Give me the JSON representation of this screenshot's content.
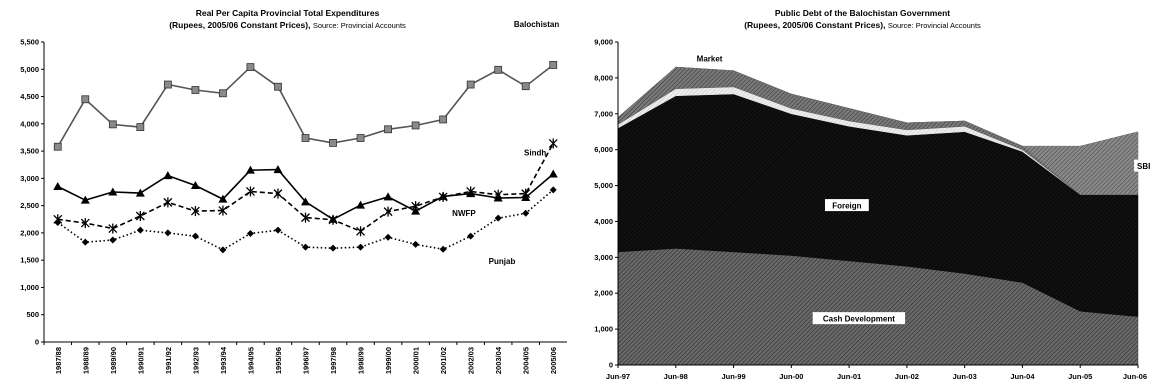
{
  "chart_data": [
    {
      "type": "line",
      "title": "Real Per Capita Provincial Total Expenditures",
      "subtitle": "(Rupees, 2005/06 Constant Prices),",
      "source": "Source: Provincial Accounts",
      "ylim": [
        0,
        5500
      ],
      "ytick_labels": [
        "0",
        "500",
        "1,000",
        "1,500",
        "2,000",
        "2,500",
        "3,000",
        "3,500",
        "4,000",
        "4,500",
        "5,000",
        "5,500"
      ],
      "categories": [
        "1987/88",
        "1988/89",
        "1989/90",
        "1990/91",
        "1991/92",
        "1992/93",
        "1993/94",
        "1994/95",
        "1995/96",
        "1996/97",
        "1997/98",
        "1998/99",
        "1999/00",
        "2000/01",
        "2001/02",
        "2002/03",
        "2003/04",
        "2004/05",
        "2005/06"
      ],
      "grid": false,
      "series": [
        {
          "name": "Balochistan",
          "color": "#555555",
          "line": "solid",
          "marker": "square",
          "values": [
            3580,
            4450,
            3990,
            3940,
            4720,
            4620,
            4560,
            5040,
            4680,
            3740,
            3650,
            3740,
            3900,
            3970,
            4080,
            4720,
            4990,
            4690,
            5080
          ]
        },
        {
          "name": "NWFP",
          "color": "#000000",
          "line": "solid",
          "marker": "triangle",
          "values": [
            2850,
            2600,
            2750,
            2730,
            3050,
            2870,
            2620,
            3150,
            3160,
            2570,
            2250,
            2510,
            2660,
            2400,
            2670,
            2720,
            2640,
            2650,
            3080
          ]
        },
        {
          "name": "Sindh",
          "color": "#000000",
          "line": "dashed",
          "marker": "star",
          "values": [
            2250,
            2180,
            2080,
            2310,
            2560,
            2400,
            2410,
            2760,
            2720,
            2280,
            2240,
            2030,
            2390,
            2490,
            2660,
            2760,
            2700,
            2720,
            3640
          ]
        },
        {
          "name": "Punjab",
          "color": "#000000",
          "line": "dotted",
          "marker": "diamond",
          "values": [
            2190,
            1830,
            1870,
            2050,
            2000,
            1940,
            1690,
            1990,
            2050,
            1740,
            1720,
            1740,
            1920,
            1790,
            1700,
            1940,
            2270,
            2360,
            2790
          ]
        }
      ]
    },
    {
      "type": "area",
      "title": "Public Debt of the Balochistan Government",
      "subtitle": "(Rupees, 2005/06 Constant Prices),",
      "source": "Source: Provincial Accounts",
      "ylim": [
        0,
        9000
      ],
      "ytick_labels": [
        "0",
        "1,000",
        "2,000",
        "3,000",
        "4,000",
        "5,000",
        "6,000",
        "7,000",
        "8,000",
        "9,000"
      ],
      "x": [
        "Jun-97",
        "Jun-98",
        "Jun-99",
        "Jun-00",
        "Jun-01",
        "Jun-02",
        "Jun-03",
        "Jun-04",
        "Jun-05",
        "Jun-06"
      ],
      "grid": false,
      "stacked": true,
      "series": [
        {
          "name": "Cash Development",
          "color": "#4a4a4a",
          "values": [
            3150,
            3250,
            3150,
            3050,
            2900,
            2750,
            2550,
            2300,
            1500,
            1350
          ]
        },
        {
          "name": "Foreign",
          "color": "#0a0a0a",
          "values": [
            3450,
            4250,
            4400,
            3950,
            3750,
            3650,
            3950,
            3650,
            3250,
            3400
          ]
        },
        {
          "name": "",
          "color": "#e2e2e2",
          "values": [
            100,
            200,
            200,
            150,
            150,
            150,
            150,
            50,
            0,
            0
          ]
        },
        {
          "name": "Market",
          "color": "#5c5c5c",
          "values": [
            200,
            600,
            450,
            400,
            350,
            200,
            150,
            100,
            0,
            0
          ]
        },
        {
          "name": "SBP",
          "color": "#6c6c6c",
          "values": [
            0,
            0,
            0,
            0,
            0,
            0,
            0,
            0,
            1350,
            1750
          ]
        }
      ]
    }
  ]
}
